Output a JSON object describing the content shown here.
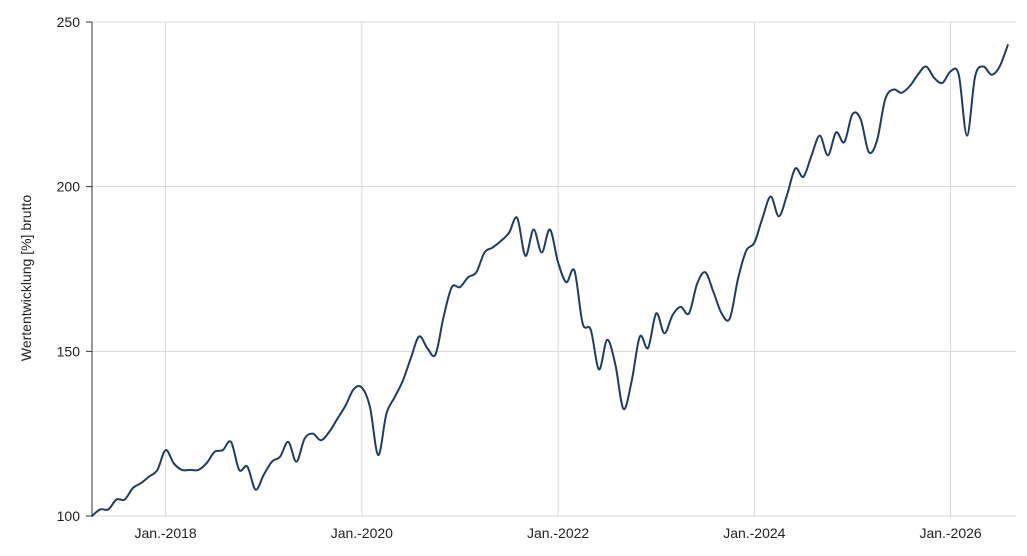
{
  "chart_data": {
    "type": "line",
    "title": "",
    "xlabel": "",
    "ylabel": "Wertentwicklung [%] brutto",
    "ylim": [
      100,
      250
    ],
    "xlim": [
      "2017-04",
      "2026-09"
    ],
    "grid": true,
    "legend": "none",
    "y_ticks": [
      {
        "value": 100,
        "label": "100"
      },
      {
        "value": 150,
        "label": "150"
      },
      {
        "value": 200,
        "label": "200"
      },
      {
        "value": 250,
        "label": "250"
      }
    ],
    "x_ticks": [
      {
        "value": "2018-01",
        "label": "Jan.-2018"
      },
      {
        "value": "2020-01",
        "label": "Jan.-2020"
      },
      {
        "value": "2022-01",
        "label": "Jan.-2022"
      },
      {
        "value": "2024-01",
        "label": "Jan.-2024"
      },
      {
        "value": "2026-01",
        "label": "Jan.-2026"
      }
    ],
    "series": [
      {
        "color": "#1f3c66",
        "points": [
          [
            "2017-04",
            100
          ],
          [
            "2017-05",
            102
          ],
          [
            "2017-06",
            102
          ],
          [
            "2017-07",
            105
          ],
          [
            "2017-08",
            105
          ],
          [
            "2017-09",
            108.5
          ],
          [
            "2017-10",
            110
          ],
          [
            "2017-11",
            112
          ],
          [
            "2017-12",
            114
          ],
          [
            "2018-01",
            120
          ],
          [
            "2018-02",
            116
          ],
          [
            "2018-03",
            114
          ],
          [
            "2018-04",
            114
          ],
          [
            "2018-05",
            114
          ],
          [
            "2018-06",
            116
          ],
          [
            "2018-07",
            119.5
          ],
          [
            "2018-08",
            120
          ],
          [
            "2018-09",
            122.5
          ],
          [
            "2018-10",
            114
          ],
          [
            "2018-11",
            115
          ],
          [
            "2018-12",
            108
          ],
          [
            "2019-01",
            112.5
          ],
          [
            "2019-02",
            116.5
          ],
          [
            "2019-03",
            118
          ],
          [
            "2019-04",
            122.5
          ],
          [
            "2019-05",
            116.5
          ],
          [
            "2019-06",
            123.5
          ],
          [
            "2019-07",
            125
          ],
          [
            "2019-08",
            123
          ],
          [
            "2019-09",
            125.5
          ],
          [
            "2019-10",
            129.5
          ],
          [
            "2019-11",
            133.5
          ],
          [
            "2019-12",
            138.5
          ],
          [
            "2020-01",
            139
          ],
          [
            "2020-02",
            133
          ],
          [
            "2020-03",
            118.5
          ],
          [
            "2020-04",
            131
          ],
          [
            "2020-05",
            136
          ],
          [
            "2020-06",
            141
          ],
          [
            "2020-07",
            148
          ],
          [
            "2020-08",
            154.5
          ],
          [
            "2020-09",
            151
          ],
          [
            "2020-10",
            149
          ],
          [
            "2020-11",
            160.5
          ],
          [
            "2020-12",
            169.5
          ],
          [
            "2021-01",
            169.5
          ],
          [
            "2021-02",
            172.5
          ],
          [
            "2021-03",
            174
          ],
          [
            "2021-04",
            180
          ],
          [
            "2021-05",
            181.5
          ],
          [
            "2021-06",
            183.5
          ],
          [
            "2021-07",
            186
          ],
          [
            "2021-08",
            190.5
          ],
          [
            "2021-09",
            179
          ],
          [
            "2021-10",
            187
          ],
          [
            "2021-11",
            180
          ],
          [
            "2021-12",
            187
          ],
          [
            "2022-01",
            177
          ],
          [
            "2022-02",
            171
          ],
          [
            "2022-03",
            174.5
          ],
          [
            "2022-04",
            158.5
          ],
          [
            "2022-05",
            156.5
          ],
          [
            "2022-06",
            144.5
          ],
          [
            "2022-07",
            153.5
          ],
          [
            "2022-08",
            146
          ],
          [
            "2022-09",
            132.5
          ],
          [
            "2022-10",
            141
          ],
          [
            "2022-11",
            154.5
          ],
          [
            "2022-12",
            151
          ],
          [
            "2023-01",
            161.5
          ],
          [
            "2023-02",
            155.5
          ],
          [
            "2023-03",
            161
          ],
          [
            "2023-04",
            163.5
          ],
          [
            "2023-05",
            161.5
          ],
          [
            "2023-06",
            170.5
          ],
          [
            "2023-07",
            174
          ],
          [
            "2023-08",
            168
          ],
          [
            "2023-09",
            161.5
          ],
          [
            "2023-10",
            160
          ],
          [
            "2023-11",
            172
          ],
          [
            "2023-12",
            180.5
          ],
          [
            "2024-01",
            183
          ],
          [
            "2024-02",
            190.5
          ],
          [
            "2024-03",
            197
          ],
          [
            "2024-04",
            191
          ],
          [
            "2024-05",
            197.5
          ],
          [
            "2024-06",
            205.5
          ],
          [
            "2024-07",
            203
          ],
          [
            "2024-08",
            209.5
          ],
          [
            "2024-09",
            215.5
          ],
          [
            "2024-10",
            209.5
          ],
          [
            "2024-11",
            216.5
          ],
          [
            "2024-12",
            213.5
          ],
          [
            "2025-01",
            222
          ],
          [
            "2025-02",
            220.5
          ],
          [
            "2025-03",
            210.5
          ],
          [
            "2025-04",
            214
          ],
          [
            "2025-05",
            226.5
          ],
          [
            "2025-06",
            229.5
          ],
          [
            "2025-07",
            228.5
          ],
          [
            "2025-08",
            230.5
          ],
          [
            "2025-09",
            234
          ],
          [
            "2025-10",
            236.5
          ],
          [
            "2025-11",
            233
          ],
          [
            "2025-12",
            231.5
          ],
          [
            "2026-01",
            235
          ],
          [
            "2026-02",
            234
          ],
          [
            "2026-03",
            215.5
          ],
          [
            "2026-04",
            233.5
          ],
          [
            "2026-05",
            236.5
          ],
          [
            "2026-06",
            234
          ],
          [
            "2026-07",
            236.5
          ],
          [
            "2026-08",
            243
          ]
        ]
      }
    ]
  }
}
